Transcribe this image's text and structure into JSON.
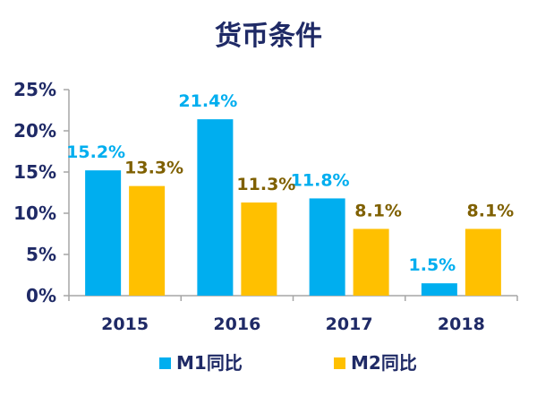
{
  "chart_data": {
    "type": "bar",
    "title": "货币条件",
    "categories": [
      "2015",
      "2016",
      "2017",
      "2018"
    ],
    "series": [
      {
        "name": "M1同比",
        "values": [
          15.2,
          21.4,
          11.8,
          1.5
        ],
        "labels": [
          "15.2%",
          "21.4%",
          "11.8%",
          "1.5%"
        ],
        "color": "#00aeef",
        "label_color": "#00aeef"
      },
      {
        "name": "M2同比",
        "values": [
          13.3,
          11.3,
          8.1,
          8.1
        ],
        "labels": [
          "13.3%",
          "11.3%",
          "8.1%",
          "8.1%"
        ],
        "color": "#ffc000",
        "label_color": "#7f6000"
      }
    ],
    "ylim": [
      0,
      25
    ],
    "yticks": [
      "0%",
      "5%",
      "10%",
      "15%",
      "20%",
      "25%"
    ],
    "ytick_values": [
      0,
      5,
      10,
      15,
      20,
      25
    ],
    "grid": false,
    "legend_position": "bottom",
    "text_color": "#1f2a66"
  }
}
